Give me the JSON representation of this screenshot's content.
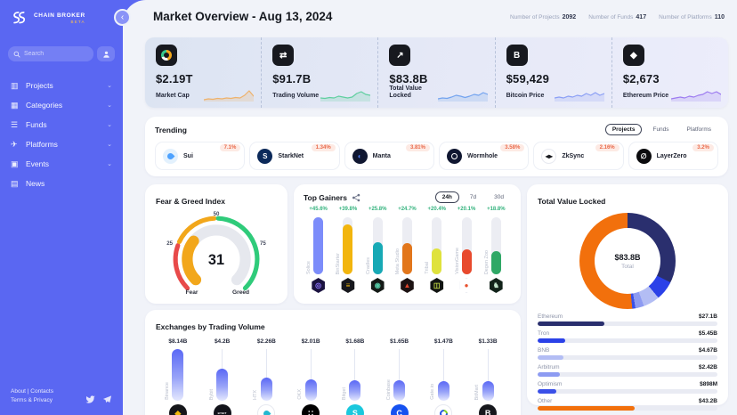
{
  "sidebar": {
    "brand": {
      "name": "CHAIN BROKER",
      "badge": "BETA"
    },
    "search": {
      "placeholder": "Search"
    },
    "menu": [
      {
        "label": "Projects",
        "icon": "projects-icon",
        "glyph": "▥",
        "has_chevron": true
      },
      {
        "label": "Categories",
        "icon": "categories-icon",
        "glyph": "▦",
        "has_chevron": true
      },
      {
        "label": "Funds",
        "icon": "funds-icon",
        "glyph": "☰",
        "has_chevron": true
      },
      {
        "label": "Platforms",
        "icon": "platforms-icon",
        "glyph": "✈",
        "has_chevron": true
      },
      {
        "label": "Events",
        "icon": "events-icon",
        "glyph": "▣",
        "has_chevron": true
      },
      {
        "label": "News",
        "icon": "news-icon",
        "glyph": "▤",
        "has_chevron": false
      }
    ],
    "footer": {
      "line1": "About | Contacts",
      "line2": "Terms & Privacy"
    }
  },
  "header": {
    "title": "Market Overview - Aug 13, 2024",
    "stats": [
      {
        "label": "Number of Projects",
        "value": "2092"
      },
      {
        "label": "Number of Funds",
        "value": "417"
      },
      {
        "label": "Number of Platforms",
        "value": "110"
      }
    ]
  },
  "stat_cards": [
    {
      "label": "Market Cap",
      "value": "$2.19T",
      "icon": "market-cap-icon",
      "glyph": "",
      "spark_color": "#eeb26b",
      "spark_variant": 0
    },
    {
      "label": "Trading Volume",
      "value": "$91.7B",
      "icon": "trading-volume-icon",
      "glyph": "⇄",
      "spark_color": "#5fcf9f",
      "spark_variant": 1
    },
    {
      "label": "Total Value Locked",
      "value": "$83.8B",
      "icon": "tvl-icon",
      "glyph": "↗",
      "spark_color": "#74a4ef",
      "spark_variant": 2
    },
    {
      "label": "Bitcoin Price",
      "value": "$59,429",
      "icon": "bitcoin-icon",
      "glyph": "B",
      "spark_color": "#8b9ff5",
      "spark_variant": 3
    },
    {
      "label": "Ethereum Price",
      "value": "$2,673",
      "icon": "ethereum-icon",
      "glyph": "◆",
      "spark_color": "#9d7bf0",
      "spark_variant": 4
    }
  ],
  "trending": {
    "title": "Trending",
    "tabs": [
      {
        "label": "Projects",
        "active": true
      },
      {
        "label": "Funds",
        "active": false
      },
      {
        "label": "Platforms",
        "active": false
      }
    ],
    "items": [
      {
        "name": "Sui",
        "change": "7.1%",
        "logo": {
          "kind": "drop",
          "bg": "#e3f1fd",
          "fg": "#4da2ff"
        }
      },
      {
        "name": "StarkNet",
        "change": "1.34%",
        "logo": {
          "kind": "letter",
          "glyph": "S",
          "bg": "#0c2a5a",
          "fg": "#ffffff"
        }
      },
      {
        "name": "Manta",
        "change": "3.81%",
        "logo": {
          "kind": "letter",
          "glyph": "◐",
          "bg": "#101731",
          "fg": "#4f7df2"
        }
      },
      {
        "name": "Wormhole",
        "change": "3.58%",
        "logo": {
          "kind": "ring",
          "bg": "#101731",
          "fg": "#ffffff"
        }
      },
      {
        "name": "ZkSync",
        "change": "2.16%",
        "logo": {
          "kind": "letter",
          "glyph": "◂▸",
          "bg": "#ffffff",
          "fg": "#16181d",
          "border": "#e7e9f0"
        }
      },
      {
        "name": "LayerZero",
        "change": "3.2%",
        "logo": {
          "kind": "letter",
          "glyph": "∅",
          "bg": "#0b0b0e",
          "fg": "#ffffff"
        }
      }
    ]
  },
  "chart_data": [
    {
      "id": "fear_greed",
      "type": "gauge",
      "title": "Fear & Greed Index",
      "value": 31,
      "min": 0,
      "max": 100,
      "ticks": [
        25,
        50,
        75
      ],
      "zone_labels": [
        "Fear",
        "Greed"
      ],
      "zones": [
        {
          "from": 0,
          "to": 24,
          "color": "#e84a4a"
        },
        {
          "from": 26,
          "to": 49,
          "color": "#f2a71b"
        },
        {
          "from": 51,
          "to": 100,
          "color": "#2fcb7a"
        }
      ],
      "fill_color": "#f2a71b",
      "track_color": "#e6e8ee"
    },
    {
      "id": "top_gainers",
      "type": "bar",
      "title": "Top Gainers",
      "tabs": [
        "24h",
        "7d",
        "30d"
      ],
      "active_tab": "24h",
      "categories": [
        "Solice",
        "BinStarter",
        "Cradles",
        "Meta Studio",
        "Tribal",
        "VisionGame",
        "Degen Zoo"
      ],
      "values": [
        45.6,
        39.8,
        25.8,
        24.7,
        20.4,
        20.1,
        18.8
      ],
      "value_labels": [
        "+45.6%",
        "+39.8%",
        "+25.8%",
        "+24.7%",
        "+20.4%",
        "+20.1%",
        "+18.8%"
      ],
      "colors": [
        "#7c8cfa",
        "#f2b50d",
        "#17a9b5",
        "#e2761b",
        "#dfe23c",
        "#e84a2d",
        "#2fa866"
      ],
      "logos": [
        {
          "glyph": "◎",
          "bg": "#1b1340",
          "fg": "#8f76ff"
        },
        {
          "glyph": "≡",
          "bg": "#17181d",
          "fg": "#f0b90b"
        },
        {
          "glyph": "◉",
          "bg": "#141a16",
          "fg": "#53c7a2"
        },
        {
          "glyph": "▲",
          "bg": "#1c1212",
          "fg": "#e0452c"
        },
        {
          "glyph": "◫",
          "bg": "#121512",
          "fg": "#c8e046"
        },
        {
          "glyph": "●",
          "bg": "#ffffff",
          "fg": "#e8502e",
          "border": "#e7e9f0"
        },
        {
          "glyph": "♞",
          "bg": "#12231a",
          "fg": "#bfe3c9"
        }
      ]
    },
    {
      "id": "tvl_donut",
      "type": "pie",
      "title": "Total Value Locked",
      "center_value": "$83.8B",
      "center_label": "Total",
      "segments": [
        {
          "name": "Ethereum",
          "value_label": "$27.1B",
          "value_billion": 27.1,
          "color": "#2a2f6e",
          "bar_pct": 37
        },
        {
          "name": "Tron",
          "value_label": "$5.45B",
          "value_billion": 5.45,
          "color": "#2b41e8",
          "bar_pct": 15.5
        },
        {
          "name": "BNB",
          "value_label": "$4.67B",
          "value_billion": 4.67,
          "color": "#b3bdf4",
          "bar_pct": 14.5
        },
        {
          "name": "Arbitrum",
          "value_label": "$2.42B",
          "value_billion": 2.42,
          "color": "#8d9bf2",
          "bar_pct": 12.5
        },
        {
          "name": "Optimism",
          "value_label": "$898M",
          "value_billion": 0.898,
          "color": "#3a50e8",
          "bar_pct": 10.5
        },
        {
          "name": "Other",
          "value_label": "$43.2B",
          "value_billion": 43.2,
          "color": "#f2700c",
          "bar_pct": 54
        }
      ]
    },
    {
      "id": "exchanges",
      "type": "bar",
      "title": "Exchanges by Trading Volume",
      "categories": [
        "Binance",
        "Bybit",
        "HTX",
        "OKX",
        "Bitget",
        "Coinbase",
        "Gate.io",
        "BitMart"
      ],
      "value_labels": [
        "$8.14B",
        "$4.2B",
        "$2.26B",
        "$2.01B",
        "$1.68B",
        "$1.65B",
        "$1.47B",
        "$1.33B"
      ],
      "values_billion": [
        8.14,
        4.2,
        2.26,
        2.01,
        1.68,
        1.65,
        1.47,
        1.33
      ],
      "bar_pct": [
        100,
        62,
        45,
        42,
        40,
        40,
        38,
        38
      ],
      "logos": [
        {
          "kind": "letter",
          "glyph": "◆",
          "bg": "#15161a",
          "fg": "#f0b90b"
        },
        {
          "kind": "word",
          "glyph": "BYBIT",
          "bg": "#12131a",
          "fg": "#ffffff"
        },
        {
          "kind": "drop",
          "bg": "#ffffff",
          "fg": "#22b8d0",
          "border": "#e7e9f0"
        },
        {
          "kind": "letter",
          "glyph": "∷",
          "bg": "#000000",
          "fg": "#ffffff"
        },
        {
          "kind": "letter",
          "glyph": "S",
          "bg": "#1bc8dd",
          "fg": "#ffffff"
        },
        {
          "kind": "letter",
          "glyph": "C",
          "bg": "#1652f0",
          "fg": "#ffffff"
        },
        {
          "kind": "gate",
          "bg": "#ffffff",
          "border": "#e7e9f0"
        },
        {
          "kind": "letter",
          "glyph": "B",
          "bg": "#17181d",
          "fg": "#ffffff"
        }
      ]
    }
  ]
}
